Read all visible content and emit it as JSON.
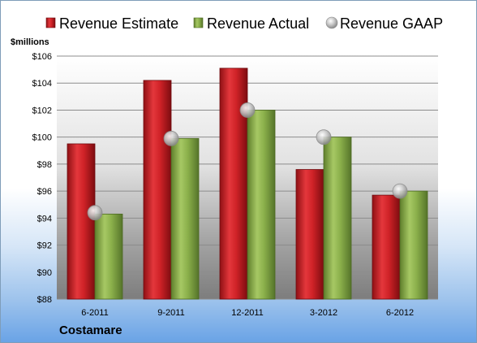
{
  "chart_data": {
    "type": "bar",
    "ylabel": "$millions",
    "company": "Costamare",
    "categories": [
      "6-2011",
      "9-2011",
      "12-2011",
      "3-2012",
      "6-2012"
    ],
    "ylim": [
      88,
      106
    ],
    "yticks": [
      88,
      90,
      92,
      94,
      96,
      98,
      100,
      102,
      104,
      106
    ],
    "ytick_labels": [
      "$88",
      "$90",
      "$92",
      "$94",
      "$96",
      "$98",
      "$100",
      "$102",
      "$104",
      "$106"
    ],
    "grid": true,
    "legend_position": "top",
    "series": [
      {
        "name": "Revenue Estimate",
        "kind": "bar",
        "color": "#cc1f25",
        "values": [
          99.5,
          104.2,
          105.1,
          97.6,
          95.7
        ]
      },
      {
        "name": "Revenue Actual",
        "kind": "bar",
        "color": "#8cb04a",
        "values": [
          94.3,
          99.9,
          102.0,
          100.0,
          96.0
        ]
      },
      {
        "name": "Revenue GAAP",
        "kind": "marker",
        "color": "#b8b8b8",
        "values": [
          94.4,
          99.9,
          102.0,
          100.0,
          96.0
        ]
      }
    ]
  }
}
